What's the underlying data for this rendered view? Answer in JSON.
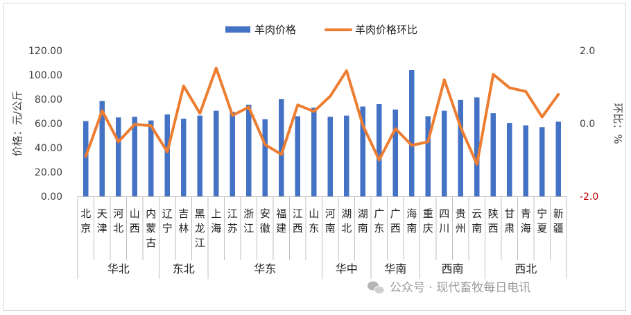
{
  "chart_data": {
    "type": "bar",
    "categories": [
      "北京",
      "天津",
      "河北",
      "山西",
      "内蒙古",
      "辽宁",
      "吉林",
      "黑龙江",
      "上海",
      "江苏",
      "浙江",
      "安徽",
      "福建",
      "江西",
      "山东",
      "河南",
      "湖北",
      "湖南",
      "广东",
      "广西",
      "海南",
      "重庆",
      "四川",
      "贵州",
      "云南",
      "陕西",
      "甘肃",
      "青海",
      "宁夏",
      "新疆"
    ],
    "regions": [
      {
        "name": "华北",
        "count": 5
      },
      {
        "name": "东北",
        "count": 3
      },
      {
        "name": "华东",
        "count": 7
      },
      {
        "name": "华中",
        "count": 3
      },
      {
        "name": "华南",
        "count": 3
      },
      {
        "name": "西南",
        "count": 4
      },
      {
        "name": "西北",
        "count": 5
      }
    ],
    "series": [
      {
        "name": "羊肉价格",
        "kind": "bar",
        "axis": "left",
        "color": "#4472C4",
        "values": [
          62,
          78.5,
          65,
          65.5,
          62.5,
          67.5,
          64,
          66.5,
          70.5,
          69.5,
          75.5,
          63.5,
          80,
          66,
          73,
          65.5,
          66.5,
          74,
          76,
          71.5,
          104,
          66,
          70.5,
          79.5,
          81.5,
          68.5,
          60.5,
          58.5,
          57,
          61.5
        ]
      },
      {
        "name": "羊肉价格环比",
        "kind": "line",
        "axis": "right",
        "color": "#ED7D31",
        "values": [
          -0.9,
          0.35,
          -0.5,
          -0.02,
          -0.06,
          -0.78,
          1.03,
          0.28,
          1.52,
          0.22,
          0.45,
          -0.58,
          -0.85,
          0.51,
          0.33,
          0.75,
          1.45,
          -0.05,
          -1.0,
          -0.14,
          -0.6,
          -0.5,
          1.2,
          -0.1,
          -1.12,
          1.35,
          0.98,
          0.88,
          0.18,
          0.8
        ]
      }
    ],
    "y_left": {
      "min": 0,
      "max": 120,
      "ticks": [
        "0.00",
        "20.00",
        "40.00",
        "60.00",
        "80.00",
        "100.00",
        "120.00"
      ],
      "label": "价格：元/公斤"
    },
    "y_right": {
      "min": -2,
      "max": 2,
      "ticks": [
        {
          "v": -2,
          "t": "-2.0",
          "color": "#C00000"
        },
        {
          "v": 0,
          "t": "0.0",
          "color": "#404040"
        },
        {
          "v": 2,
          "t": "2.0",
          "color": "#404040"
        }
      ],
      "label": "环比：%"
    },
    "grid": false,
    "legend": "top-center"
  },
  "watermark": {
    "icon": "wechat-icon",
    "text": "公众号 · 现代畜牧每日电讯"
  }
}
